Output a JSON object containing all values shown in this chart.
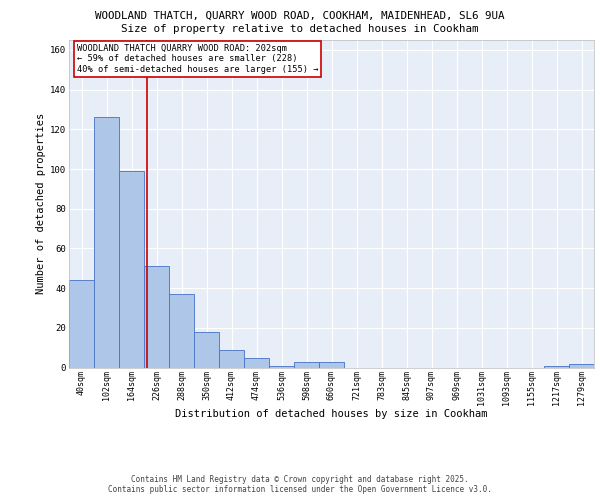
{
  "title_line1": "WOODLAND THATCH, QUARRY WOOD ROAD, COOKHAM, MAIDENHEAD, SL6 9UA",
  "title_line2": "Size of property relative to detached houses in Cookham",
  "xlabel": "Distribution of detached houses by size in Cookham",
  "ylabel": "Number of detached properties",
  "bar_labels": [
    "40sqm",
    "102sqm",
    "164sqm",
    "226sqm",
    "288sqm",
    "350sqm",
    "412sqm",
    "474sqm",
    "536sqm",
    "598sqm",
    "660sqm",
    "721sqm",
    "783sqm",
    "845sqm",
    "907sqm",
    "969sqm",
    "1031sqm",
    "1093sqm",
    "1155sqm",
    "1217sqm",
    "1279sqm"
  ],
  "bar_values": [
    44,
    126,
    99,
    51,
    37,
    18,
    9,
    5,
    1,
    3,
    3,
    0,
    0,
    0,
    0,
    0,
    0,
    0,
    0,
    1,
    2
  ],
  "bar_color": "#aec6e8",
  "bar_edge_color": "#4472c4",
  "property_line_x": 2.62,
  "property_line_color": "#cc0000",
  "annotation_text": "WOODLAND THATCH QUARRY WOOD ROAD: 202sqm\n← 59% of detached houses are smaller (228)\n40% of semi-detached houses are larger (155) →",
  "annotation_box_color": "#ffffff",
  "annotation_box_edge": "#cc0000",
  "ylim": [
    0,
    165
  ],
  "yticks": [
    0,
    20,
    40,
    60,
    80,
    100,
    120,
    140,
    160
  ],
  "background_color": "#e8eef7",
  "footer_text": "Contains HM Land Registry data © Crown copyright and database right 2025.\nContains public sector information licensed under the Open Government Licence v3.0.",
  "grid_color": "#ffffff",
  "title_fontsize": 7.8,
  "subtitle_fontsize": 7.8,
  "axis_label_fontsize": 7.5,
  "tick_fontsize": 6.0,
  "annotation_fontsize": 6.2,
  "footer_fontsize": 5.5
}
